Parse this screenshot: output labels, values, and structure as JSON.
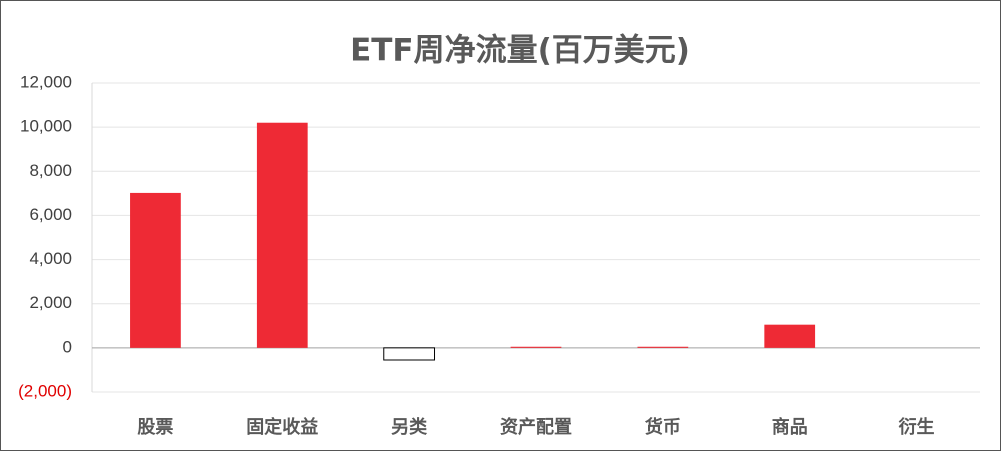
{
  "chart_data": {
    "type": "bar",
    "title": "ETF周净流量(百万美元)",
    "categories": [
      "股票",
      "固定收益",
      "另类",
      "资产配置",
      "货币",
      "商品",
      "衍生"
    ],
    "values": [
      7020,
      10200,
      -550,
      50,
      50,
      1050,
      0
    ],
    "color": "#ee2a35",
    "negative_fill": "#ffffff",
    "negative_stroke": "#000000",
    "negative_label_color": "#e00000",
    "ylim": [
      -2000,
      12000
    ],
    "yticks": [
      {
        "value": -2000,
        "label": "(2,000)"
      },
      0,
      {
        "value": 2000,
        "label": "2,000"
      },
      {
        "value": 4000,
        "label": "4,000"
      },
      {
        "value": 6000,
        "label": "6,000"
      },
      {
        "value": 8000,
        "label": "8,000"
      },
      {
        "value": 10000,
        "label": "10,000"
      },
      {
        "value": 12000,
        "label": "12,000"
      }
    ],
    "grid": true
  }
}
